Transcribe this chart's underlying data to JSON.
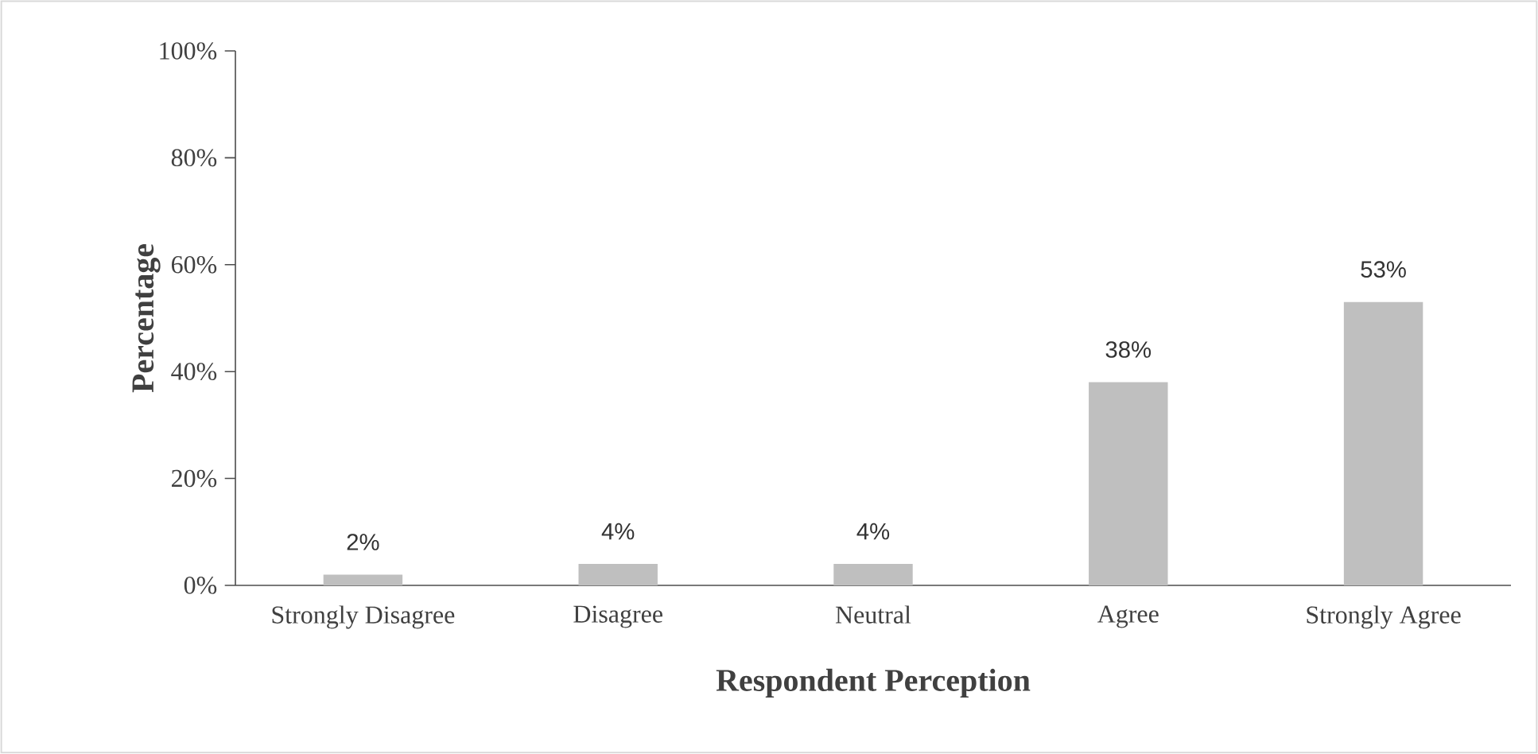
{
  "chart_data": {
    "type": "bar",
    "xlabel": "Respondent Perception",
    "ylabel": "Percentage",
    "categories": [
      "Strongly Disagree",
      "Disagree",
      "Neutral",
      "Agree",
      "Strongly Agree"
    ],
    "values": [
      2,
      4,
      4,
      38,
      53
    ],
    "value_labels": [
      "2%",
      "4%",
      "4%",
      "38%",
      "53%"
    ],
    "color": "#bfbfbf",
    "ylim": [
      0,
      100
    ],
    "yticks": [
      {
        "value": 0,
        "label": "0%"
      },
      {
        "value": 20,
        "label": "20%"
      },
      {
        "value": 40,
        "label": "40%"
      },
      {
        "value": 60,
        "label": "60%"
      },
      {
        "value": 80,
        "label": "80%"
      },
      {
        "value": 100,
        "label": "100%"
      }
    ]
  }
}
